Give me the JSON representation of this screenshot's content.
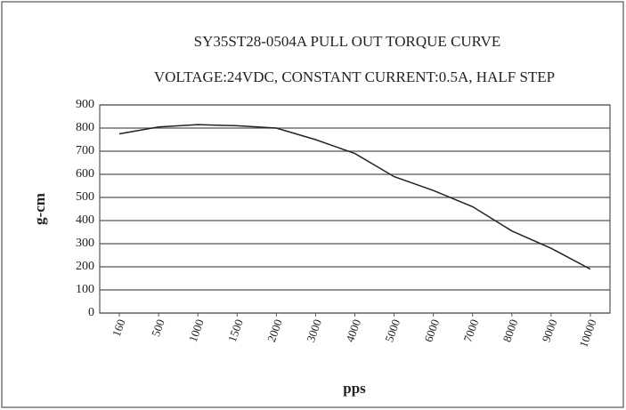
{
  "chart_data": {
    "type": "line",
    "title": "SY35ST28-0504A PULL OUT TORQUE CURVE",
    "subtitle": "VOLTAGE:24VDC, CONSTANT CURRENT:0.5A, HALF STEP",
    "x_label": "pps",
    "y_label": "g-cm",
    "categories": [
      "160",
      "500",
      "1000",
      "1500",
      "2000",
      "3000",
      "4000",
      "5000",
      "6000",
      "7000",
      "8000",
      "9000",
      "10000"
    ],
    "values": [
      775,
      805,
      815,
      810,
      800,
      750,
      690,
      590,
      530,
      460,
      355,
      280,
      190
    ],
    "color": "#222222",
    "ylim": [
      0,
      900
    ],
    "yticks": [
      0,
      100,
      200,
      300,
      400,
      500,
      600,
      700,
      800,
      900
    ],
    "grid": true
  }
}
